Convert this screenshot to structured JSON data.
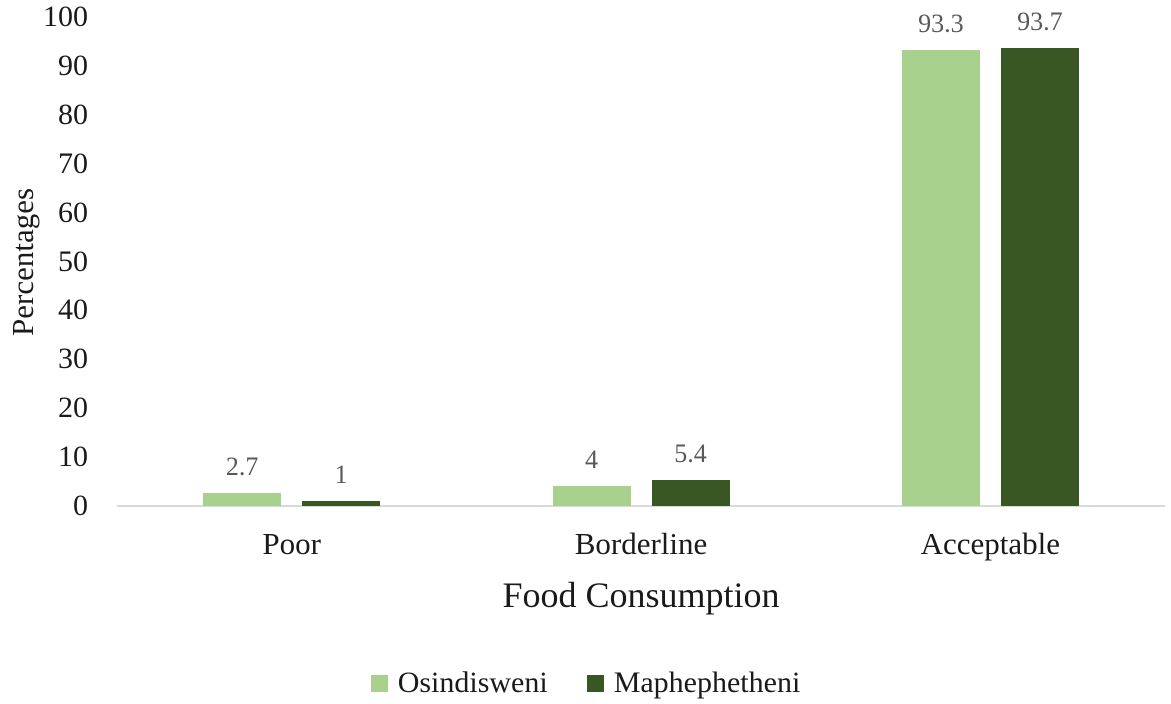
{
  "chart_data": {
    "type": "bar",
    "title": "",
    "categories": [
      "Poor",
      "Borderline",
      "Acceptable"
    ],
    "series": [
      {
        "name": "Osindisweni",
        "color": "#A9D18E",
        "values": [
          2.7,
          4,
          93.3
        ]
      },
      {
        "name": "Maphephetheni",
        "color": "#385723",
        "values": [
          1,
          5.4,
          93.7
        ]
      }
    ],
    "xlabel": "Food Consumption",
    "ylabel": "Percentages",
    "ylim": [
      0,
      100
    ],
    "yticks": [
      0,
      10,
      20,
      30,
      40,
      50,
      60,
      70,
      80,
      90,
      100
    ],
    "grid": false,
    "legend_position": "bottom",
    "colors": {
      "axis_line": "#D9D9D9",
      "tick_label": "#1A1A1A",
      "value_label": "#595959",
      "background": "#FFFFFF"
    }
  }
}
